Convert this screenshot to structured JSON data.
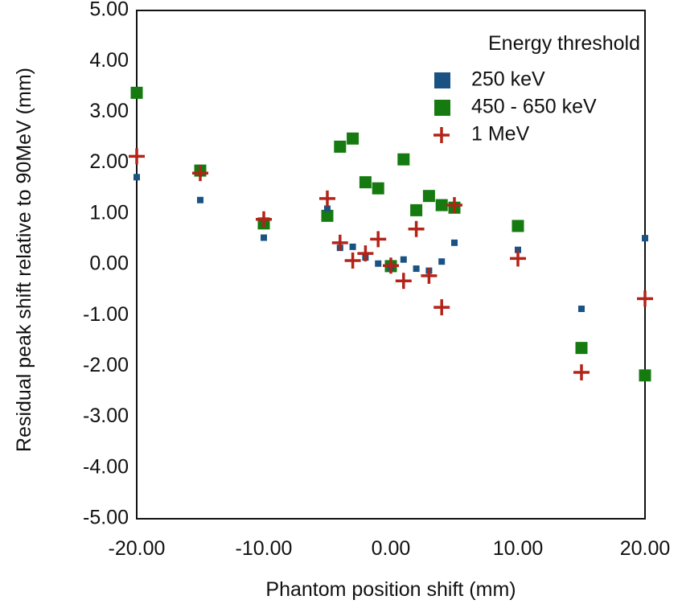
{
  "chart_data": {
    "type": "scatter",
    "title": "",
    "xlabel": "Phantom position shift (mm)",
    "ylabel": "Residual peak shift relative to 90MeV (mm)",
    "xlim": [
      -20,
      20
    ],
    "ylim": [
      -5,
      5
    ],
    "x_ticks": [
      -20,
      -10,
      0,
      10,
      20
    ],
    "x_tick_labels": [
      "-20.00",
      "-10.00",
      "0.00",
      "10.00",
      "20.00"
    ],
    "y_ticks": [
      5,
      4,
      3,
      2,
      1,
      0,
      -1,
      -2,
      -3,
      -4,
      -5
    ],
    "y_tick_labels": [
      "5.00",
      "4.00",
      "3.00",
      "2.00",
      "1.00",
      "0.00",
      "-1.00",
      "-2.00",
      "-3.00",
      "-4.00",
      "-5.00"
    ],
    "grid": false,
    "legend": {
      "title": "Energy threshold",
      "position": "top-right"
    },
    "series": [
      {
        "name": "250 keV",
        "marker": "square-small",
        "color": "#1a5383",
        "points": [
          [
            -20,
            1.72
          ],
          [
            -15,
            1.27
          ],
          [
            -10,
            0.53
          ],
          [
            -5,
            1.1
          ],
          [
            -4,
            0.33
          ],
          [
            -3,
            0.35
          ],
          [
            -2,
            0.14
          ],
          [
            -1,
            0.02
          ],
          [
            0,
            -0.05
          ],
          [
            1,
            0.1
          ],
          [
            2,
            -0.08
          ],
          [
            3,
            -0.12
          ],
          [
            4,
            0.06
          ],
          [
            5,
            0.43
          ],
          [
            10,
            0.29
          ],
          [
            15,
            -0.87
          ],
          [
            20,
            0.52
          ]
        ]
      },
      {
        "name": "450 - 650 keV",
        "marker": "square-large",
        "color": "#157a10",
        "points": [
          [
            -20,
            3.38
          ],
          [
            -15,
            1.85
          ],
          [
            -10,
            0.81
          ],
          [
            -5,
            0.96
          ],
          [
            -4,
            2.32
          ],
          [
            -3,
            2.48
          ],
          [
            -2,
            1.62
          ],
          [
            -1,
            1.5
          ],
          [
            0,
            -0.03
          ],
          [
            1,
            2.07
          ],
          [
            2,
            1.07
          ],
          [
            3,
            1.35
          ],
          [
            4,
            1.17
          ],
          [
            5,
            1.12
          ],
          [
            10,
            0.76
          ],
          [
            15,
            -1.64
          ],
          [
            20,
            -2.18
          ]
        ]
      },
      {
        "name": "1 MeV",
        "marker": "plus",
        "color": "#b32318",
        "points": [
          [
            -20,
            2.13
          ],
          [
            -15,
            1.8
          ],
          [
            -10,
            0.89
          ],
          [
            -5,
            1.3
          ],
          [
            -4,
            0.43
          ],
          [
            -3,
            0.08
          ],
          [
            -2,
            0.22
          ],
          [
            -1,
            0.5
          ],
          [
            0,
            -0.02
          ],
          [
            1,
            -0.32
          ],
          [
            2,
            0.7
          ],
          [
            3,
            -0.22
          ],
          [
            4,
            -0.84
          ],
          [
            5,
            1.17
          ],
          [
            10,
            0.12
          ],
          [
            15,
            -2.12
          ],
          [
            20,
            -0.67
          ]
        ]
      }
    ]
  }
}
